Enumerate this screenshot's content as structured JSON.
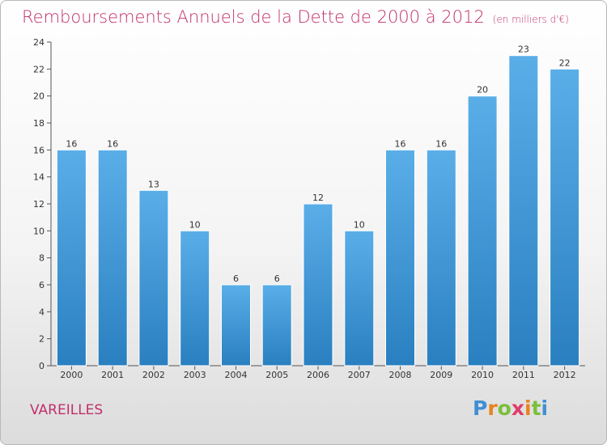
{
  "chart_data": {
    "type": "bar",
    "title": "Remboursements Annuels de la Dette de 2000 à 2012",
    "unit_note": "(en milliers d'€)",
    "categories": [
      "2000",
      "2001",
      "2002",
      "2003",
      "2004",
      "2005",
      "2006",
      "2007",
      "2008",
      "2009",
      "2010",
      "2011",
      "2012"
    ],
    "values": [
      16,
      16,
      13,
      10,
      6,
      6,
      12,
      10,
      16,
      16,
      20,
      23,
      22
    ],
    "ylim": [
      0,
      24
    ],
    "yticks": [
      0,
      2,
      4,
      6,
      8,
      10,
      12,
      14,
      16,
      18,
      20,
      22,
      24
    ],
    "grid": false,
    "bar_color": "#4a9fdf",
    "title_color": "#c0306a"
  },
  "footer": {
    "place": "VAREILLES",
    "logo_text": "Proxiti"
  }
}
